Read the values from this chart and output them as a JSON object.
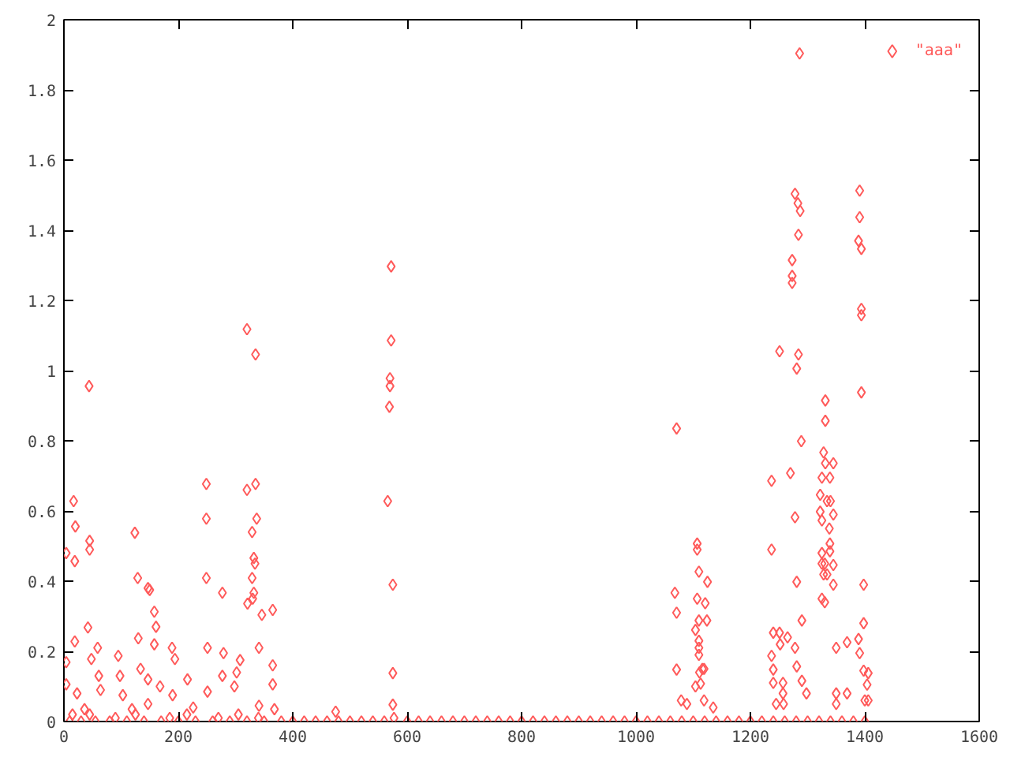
{
  "chart_data": {
    "type": "scatter",
    "marker": "diamond",
    "legend": "top right",
    "grid": false,
    "xlim": [
      0,
      1600
    ],
    "xticks": [
      0,
      200,
      400,
      600,
      800,
      1000,
      1200,
      1400,
      1600
    ],
    "ylim": [
      0,
      2
    ],
    "yticks": [
      0,
      0.2,
      0.4,
      0.6,
      0.8,
      1,
      1.2,
      1.4,
      1.6,
      1.8,
      2
    ],
    "series": [
      {
        "name": "\"aaa\"",
        "color": "#ff5a5a",
        "x": [
          44,
          17,
          20,
          45,
          45,
          4,
          19,
          124,
          320,
          335,
          249,
          320,
          335,
          249,
          337,
          329,
          332,
          334,
          249,
          329,
          129,
          277,
          332,
          330,
          321,
          365,
          346,
          158,
          147,
          150,
          42,
          161,
          19,
          59,
          95,
          130,
          158,
          189,
          251,
          279,
          341,
          48,
          4,
          4,
          194,
          308,
          365,
          61,
          98,
          134,
          147,
          216,
          277,
          302,
          365,
          168,
          190,
          251,
          298,
          23,
          64,
          103,
          147,
          226,
          341,
          368,
          36,
          119,
          10,
          30,
          55,
          80,
          110,
          140,
          170,
          200,
          230,
          260,
          290,
          320,
          350,
          380,
          15,
          45,
          90,
          125,
          185,
          215,
          270,
          305,
          340,
          572,
          572,
          570,
          570,
          569,
          566,
          575,
          575,
          575,
          475,
          577,
          1286,
          1391,
          1278,
          1283,
          1287,
          1391,
          1284,
          1389,
          1394,
          1273,
          1273,
          1273,
          1394,
          1394,
          1251,
          1284,
          1281,
          1394,
          1071,
          1289,
          1331,
          1331,
          1328,
          1331,
          1345,
          1237,
          1270,
          1325,
          1339,
          1322,
          1334,
          1340,
          1322,
          1345,
          1278,
          1325,
          1338,
          1107,
          1107,
          1339,
          1339,
          1237,
          1325,
          1110,
          1325,
          1330,
          1345,
          1328,
          1334,
          1068,
          1125,
          1281,
          1345,
          1398,
          1107,
          1121,
          1325,
          1330,
          1071,
          1110,
          1124,
          1290,
          1104,
          1110,
          1110,
          1110,
          1240,
          1251,
          1265,
          1252,
          1278,
          1350,
          1369,
          1389,
          1391,
          1398,
          1237,
          1071,
          1116,
          1119,
          1111,
          1240,
          1281,
          1398,
          1406,
          1104,
          1113,
          1240,
          1257,
          1290,
          1257,
          1404,
          1079,
          1119,
          1400,
          1406,
          1350,
          1369,
          1298,
          1089,
          1245,
          1258,
          1350,
          1135,
          400,
          420,
          440,
          460,
          480,
          500,
          520,
          540,
          560,
          600,
          620,
          640,
          660,
          680,
          700,
          720,
          740,
          760,
          780,
          800,
          820,
          840,
          860,
          880,
          900,
          920,
          940,
          960,
          980,
          1000,
          1020,
          1040,
          1060,
          1080,
          1100,
          1120,
          1140,
          1160,
          1180,
          1200,
          1220,
          1240,
          1260,
          1280,
          1300,
          1320,
          1340,
          1360,
          1380,
          1400
        ],
        "values": [
          0.956,
          0.628,
          0.556,
          0.515,
          0.49,
          0.48,
          0.457,
          0.538,
          1.118,
          1.046,
          0.677,
          0.66,
          0.677,
          0.578,
          0.578,
          0.54,
          0.466,
          0.45,
          0.409,
          0.409,
          0.409,
          0.367,
          0.367,
          0.35,
          0.336,
          0.318,
          0.304,
          0.313,
          0.38,
          0.375,
          0.268,
          0.27,
          0.228,
          0.21,
          0.187,
          0.237,
          0.22,
          0.21,
          0.21,
          0.195,
          0.21,
          0.178,
          0.169,
          0.106,
          0.178,
          0.175,
          0.16,
          0.13,
          0.13,
          0.15,
          0.12,
          0.12,
          0.13,
          0.14,
          0.106,
          0.1,
          0.075,
          0.085,
          0.1,
          0.08,
          0.09,
          0.075,
          0.05,
          0.04,
          0.045,
          0.035,
          0.035,
          0.035,
          0,
          0,
          0,
          0,
          0,
          0,
          0,
          0,
          0,
          0,
          0,
          0,
          0,
          0,
          0.02,
          0.02,
          0.01,
          0.02,
          0.01,
          0.02,
          0.01,
          0.02,
          0.01,
          1.297,
          1.086,
          0.978,
          0.956,
          0.897,
          0.628,
          0.39,
          0.138,
          0.048,
          0.028,
          0.01,
          1.904,
          1.513,
          1.504,
          1.477,
          1.455,
          1.437,
          1.387,
          1.37,
          1.347,
          1.315,
          1.27,
          1.25,
          1.176,
          1.158,
          1.055,
          1.046,
          1.006,
          0.938,
          0.835,
          0.799,
          0.915,
          0.857,
          0.767,
          0.736,
          0.736,
          0.686,
          0.708,
          0.695,
          0.695,
          0.646,
          0.628,
          0.628,
          0.598,
          0.59,
          0.582,
          0.573,
          0.55,
          0.507,
          0.49,
          0.507,
          0.485,
          0.49,
          0.48,
          0.427,
          0.45,
          0.45,
          0.446,
          0.419,
          0.419,
          0.367,
          0.398,
          0.398,
          0.39,
          0.39,
          0.35,
          0.337,
          0.35,
          0.34,
          0.31,
          0.288,
          0.288,
          0.288,
          0.261,
          0.23,
          0.21,
          0.19,
          0.253,
          0.253,
          0.24,
          0.22,
          0.21,
          0.21,
          0.226,
          0.235,
          0.195,
          0.28,
          0.187,
          0.148,
          0.15,
          0.15,
          0.14,
          0.148,
          0.157,
          0.145,
          0.138,
          0.1,
          0.108,
          0.11,
          0.11,
          0.116,
          0.08,
          0.105,
          0.06,
          0.06,
          0.06,
          0.06,
          0.08,
          0.08,
          0.08,
          0.05,
          0.05,
          0.05,
          0.05,
          0.04,
          0,
          0,
          0,
          0,
          0,
          0,
          0,
          0,
          0,
          0,
          0,
          0,
          0,
          0,
          0,
          0,
          0,
          0,
          0,
          0,
          0,
          0,
          0,
          0,
          0,
          0,
          0,
          0,
          0,
          0,
          0,
          0,
          0,
          0,
          0,
          0,
          0,
          0,
          0,
          0,
          0,
          0,
          0,
          0,
          0,
          0,
          0,
          0,
          0,
          0
        ]
      }
    ]
  }
}
